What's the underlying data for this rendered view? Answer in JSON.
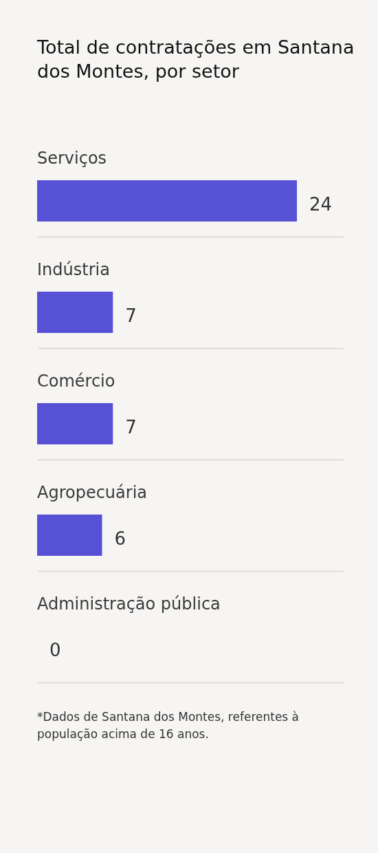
{
  "chart_data": {
    "type": "bar",
    "title": "Total de contratações em Santana dos Montes, por setor",
    "orientation": "horizontal",
    "categories": [
      "Serviços",
      "Indústria",
      "Comércio",
      "Agropecuária",
      "Administração pública"
    ],
    "values": [
      24,
      7,
      7,
      6,
      0
    ],
    "color": "#5751d6",
    "data_labels": true,
    "grid": "y",
    "annotations": [
      "*Dados de Santana dos Montes, referentes à população acima de 16 anos."
    ]
  }
}
